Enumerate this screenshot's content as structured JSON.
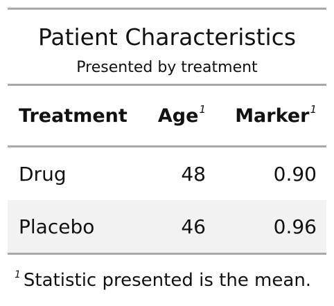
{
  "title": "Patient Characteristics",
  "subtitle": "Presented by treatment",
  "columns": {
    "treatment": "Treatment",
    "age": "Age",
    "marker": "Marker",
    "footnote_mark": "1"
  },
  "rows": [
    {
      "treatment": "Drug",
      "age": "48",
      "marker": "0.90"
    },
    {
      "treatment": "Placebo",
      "age": "46",
      "marker": "0.96"
    }
  ],
  "footnote": {
    "mark": "1",
    "text": "Statistic presented is the mean."
  },
  "colors": {
    "rule": "#a8a8a8",
    "stripe": "#f2f2f2",
    "text": "#111111"
  }
}
